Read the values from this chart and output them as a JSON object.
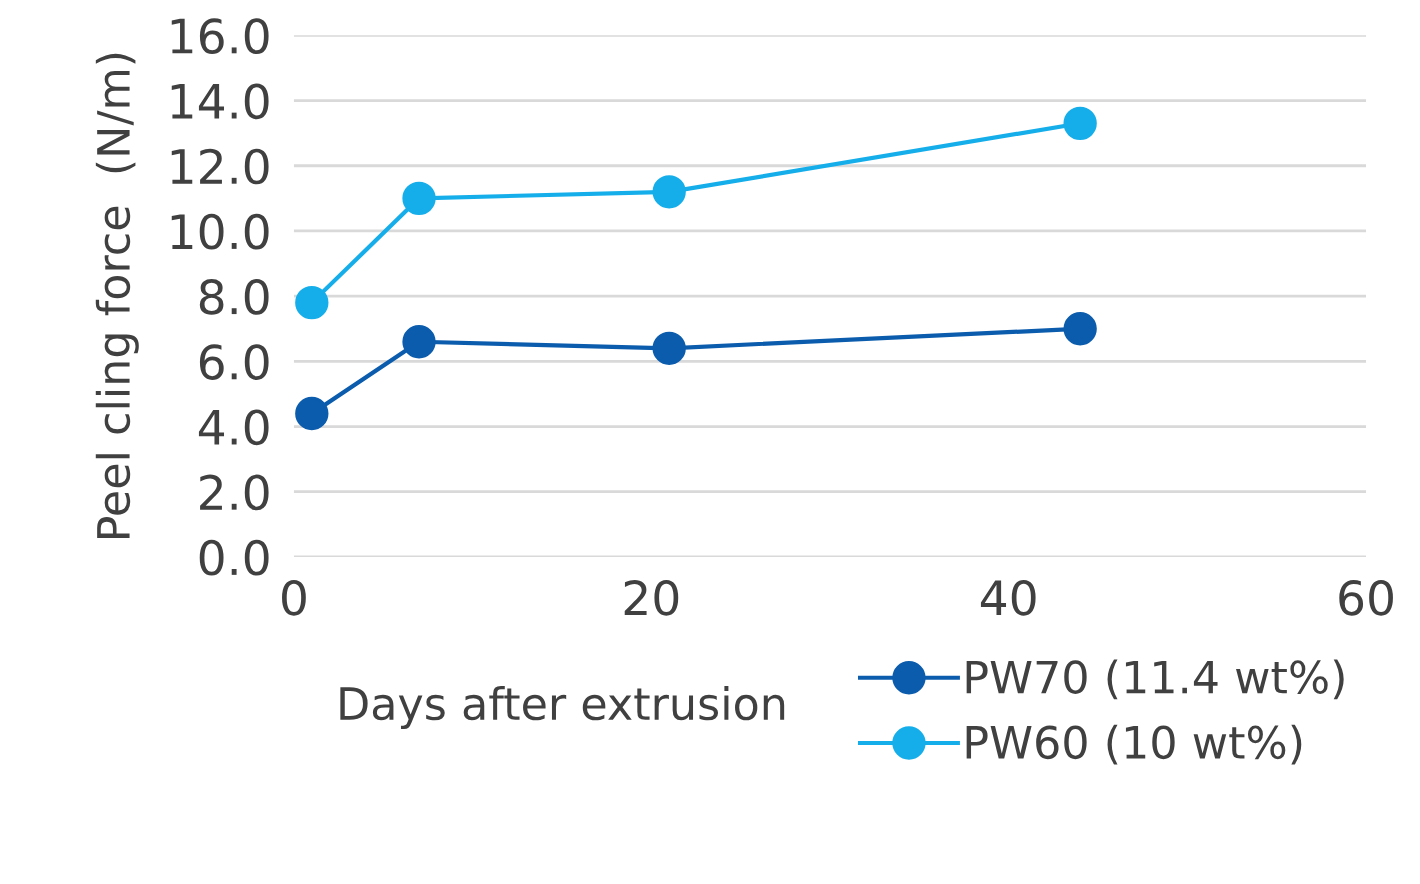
{
  "chart_data": {
    "type": "line",
    "xlabel": "Days after extrusion",
    "ylabel": "Peel cling force  (N/m)",
    "xlim": [
      0,
      60
    ],
    "xticks": [
      0,
      20,
      40,
      60
    ],
    "ylim": [
      0,
      16
    ],
    "yticks": [
      {
        "value": 0,
        "label": "0.0"
      },
      {
        "value": 2,
        "label": "2.0"
      },
      {
        "value": 4,
        "label": "4.0"
      },
      {
        "value": 6,
        "label": "6.0"
      },
      {
        "value": 8,
        "label": "8.0"
      },
      {
        "value": 10,
        "label": "10.0"
      },
      {
        "value": 12,
        "label": "12.0"
      },
      {
        "value": 14,
        "label": "14.0"
      },
      {
        "value": 16,
        "label": "16.0"
      }
    ],
    "grid": "y",
    "legend": "bottom right",
    "marker": "circle",
    "line_style": "solid",
    "series": [
      {
        "name": "PW70 (11.4 wt%)",
        "color": "#0b5cad",
        "x": [
          1,
          7,
          21,
          44
        ],
        "values": [
          4.4,
          6.6,
          6.4,
          7.0
        ]
      },
      {
        "name": "PW60 (10 wt%)",
        "color": "#15aeea",
        "x": [
          1,
          7,
          21,
          44
        ],
        "values": [
          7.8,
          11.0,
          11.2,
          13.3
        ]
      }
    ]
  }
}
